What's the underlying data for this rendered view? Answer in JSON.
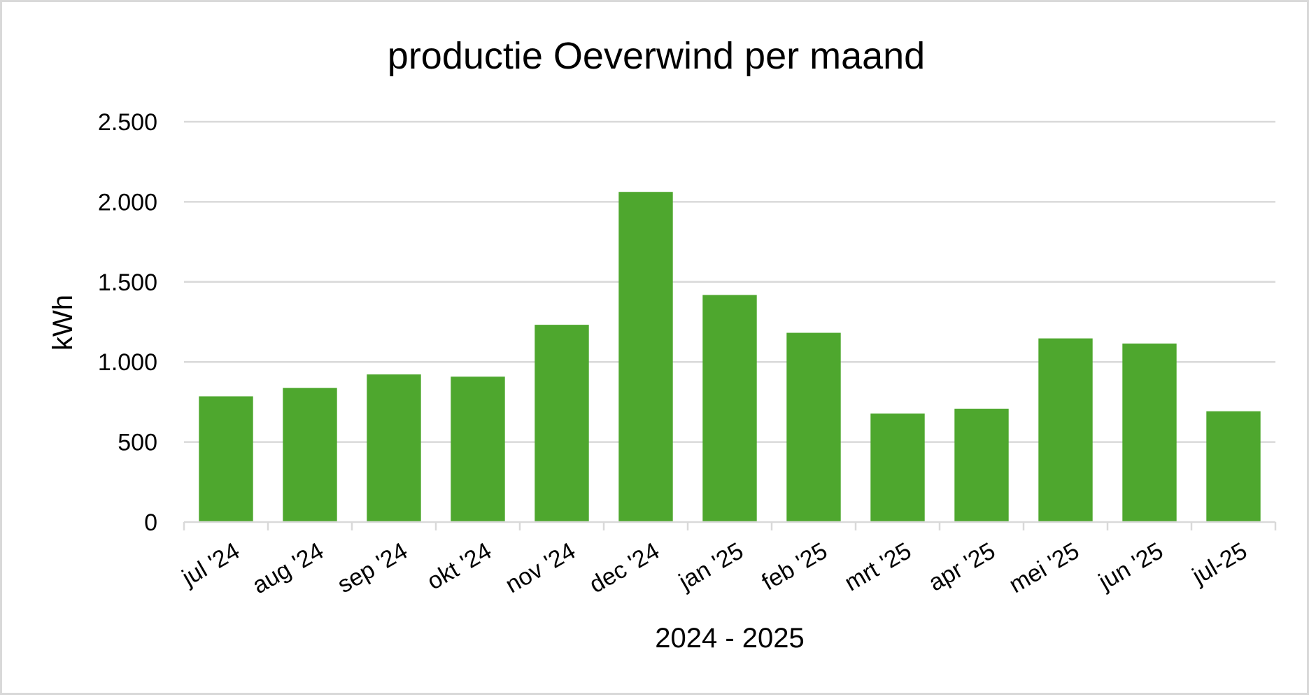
{
  "chart_data": {
    "type": "bar",
    "title": "productie Oeverwind per maand",
    "xlabel": "2024 - 2025",
    "ylabel": "kWh",
    "categories": [
      "jul '24",
      "aug '24",
      "sep '24",
      "okt '24",
      "nov '24",
      "dec '24",
      "jan '25",
      "feb '25",
      "mrt '25",
      "apr '25",
      "mei '25",
      "jun '25",
      "jul-25"
    ],
    "values": [
      785,
      838,
      922,
      908,
      1232,
      2062,
      1418,
      1182,
      678,
      708,
      1147,
      1115,
      692
    ],
    "ylim": [
      0,
      2500
    ],
    "yticks": [
      0,
      500,
      1000,
      1500,
      2000,
      2500
    ],
    "ytick_labels": [
      "0",
      "500",
      "1.000",
      "1.500",
      "2.000",
      "2.500"
    ],
    "grid": true,
    "legend": "none",
    "colors": {
      "bar": "#4ea72e",
      "grid": "#d9d9d9",
      "text": "#000000",
      "border": "#d9d9d9"
    }
  }
}
